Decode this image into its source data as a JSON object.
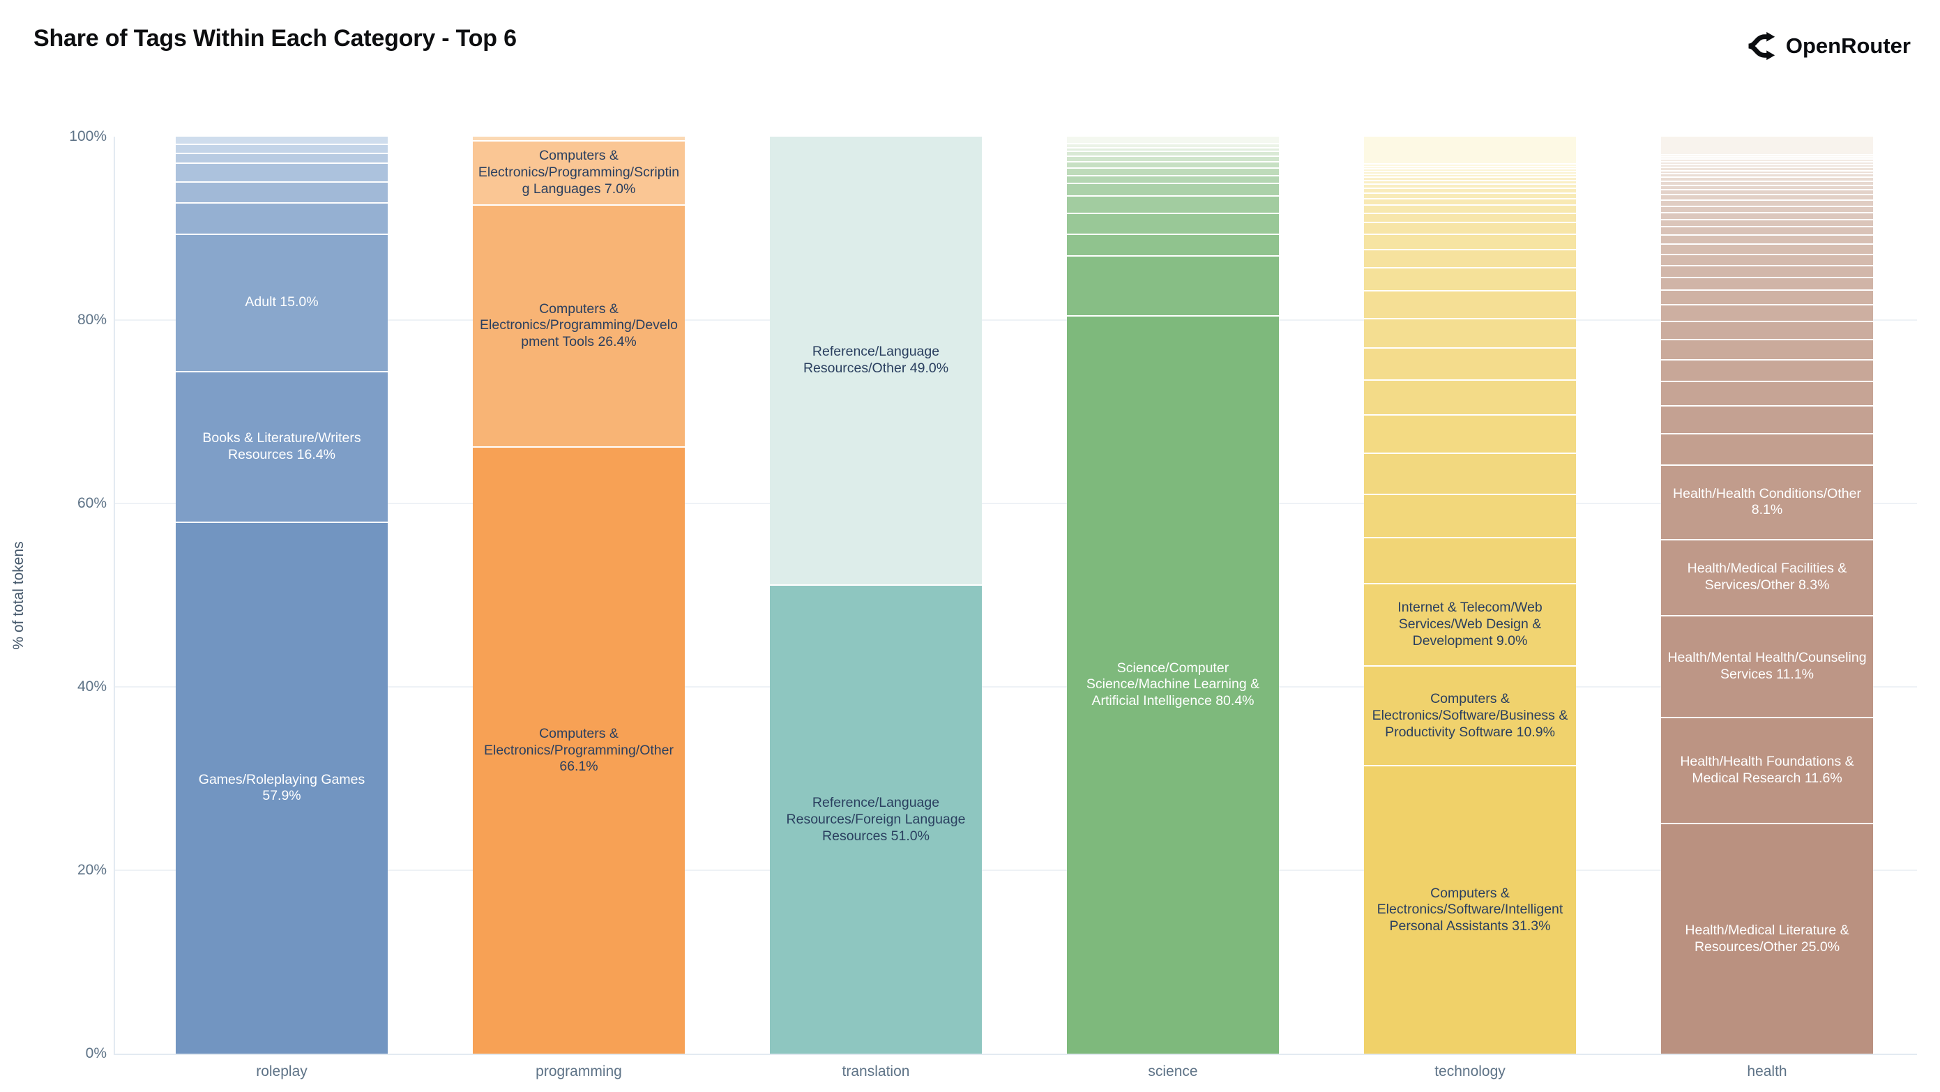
{
  "header": {
    "title": "Share of Tags Within Each Category - Top 6",
    "brand": {
      "name": "OpenRouter",
      "icon": "openrouter-fork-icon"
    }
  },
  "chart_data": {
    "type": "bar",
    "stacked": true,
    "orientation": "vertical",
    "title": "Share of Tags Within Each Category - Top 6",
    "xlabel": "",
    "ylabel": "% of total tokens",
    "ylim": [
      0,
      100
    ],
    "yticks": [
      0,
      20,
      40,
      60,
      80,
      100
    ],
    "ytick_labels": [
      "0%",
      "20%",
      "40%",
      "60%",
      "80%",
      "100%"
    ],
    "grid": true,
    "legend": false,
    "categories": [
      "roleplay",
      "programming",
      "translation",
      "science",
      "technology",
      "health"
    ],
    "bars": [
      {
        "category": "roleplay",
        "color_base": "#7295c1",
        "color_lightest": "#cfdded",
        "segments": [
          {
            "label": "Games/Roleplaying Games 57.9%",
            "value": 57.9
          },
          {
            "label": "Books & Literature/Writers Resources 16.4%",
            "value": 16.4
          },
          {
            "label": "Adult 15.0%",
            "value": 15.0
          },
          {
            "label": "",
            "value": 3.4
          },
          {
            "label": "",
            "value": 2.3
          },
          {
            "label": "",
            "value": 2.0
          },
          {
            "label": "",
            "value": 1.1
          },
          {
            "label": "",
            "value": 1.0
          },
          {
            "label": "",
            "value": 0.9
          }
        ]
      },
      {
        "category": "programming",
        "color_base": "#f7a155",
        "color_lightest": "#fbd9b4",
        "segments": [
          {
            "label": "Computers & Electronics/Programming/Other 66.1%",
            "value": 66.1
          },
          {
            "label": "Computers & Electronics/Programming/Development Tools 26.4%",
            "value": 26.4
          },
          {
            "label": "Computers & Electronics/Programming/Scripting Languages 7.0%",
            "value": 7.0
          },
          {
            "label": "",
            "value": 0.5
          }
        ]
      },
      {
        "category": "translation",
        "color_base": "#8ec6c0",
        "color_lightest": "#ddedea",
        "segments": [
          {
            "label": "Reference/Language Resources/Foreign Language Resources 51.0%",
            "value": 51.0
          },
          {
            "label": "Reference/Language Resources/Other 49.0%",
            "value": 49.0
          }
        ]
      },
      {
        "category": "science",
        "color_base": "#7eb97c",
        "color_lightest": "#f4f8f0",
        "segments": [
          {
            "label": "Science/Computer Science/Machine Learning & Artificial Intelligence 80.4%",
            "value": 80.4
          },
          {
            "label": "",
            "value": 6.5
          },
          {
            "label": "",
            "value": 2.4
          },
          {
            "label": "",
            "value": 2.3
          },
          {
            "label": "",
            "value": 1.9
          },
          {
            "label": "",
            "value": 1.3
          },
          {
            "label": "",
            "value": 0.9
          },
          {
            "label": "",
            "value": 0.8
          },
          {
            "label": "",
            "value": 0.7
          },
          {
            "label": "",
            "value": 0.6
          },
          {
            "label": "",
            "value": 0.5
          },
          {
            "label": "",
            "value": 0.45
          },
          {
            "label": "",
            "value": 0.4
          },
          {
            "label": "",
            "value": 0.85
          }
        ]
      },
      {
        "category": "technology",
        "color_base": "#f0d169",
        "color_lightest": "#fdf9e4",
        "segments": [
          {
            "label": "Computers & Electronics/Software/Intelligent Personal Assistants 31.3%",
            "value": 31.3
          },
          {
            "label": "Computers & Electronics/Software/Business & Productivity Software 10.9%",
            "value": 10.9
          },
          {
            "label": "Internet & Telecom/Web Services/Web Design & Development 9.0%",
            "value": 9.0
          },
          {
            "label": "",
            "value": 5.0
          },
          {
            "label": "",
            "value": 4.7
          },
          {
            "label": "",
            "value": 4.5
          },
          {
            "label": "",
            "value": 4.2
          },
          {
            "label": "",
            "value": 3.8
          },
          {
            "label": "",
            "value": 3.5
          },
          {
            "label": "",
            "value": 3.2
          },
          {
            "label": "",
            "value": 3.0
          },
          {
            "label": "",
            "value": 2.5
          },
          {
            "label": "",
            "value": 2.0
          },
          {
            "label": "",
            "value": 1.7
          },
          {
            "label": "",
            "value": 1.3
          },
          {
            "label": "",
            "value": 1.0
          },
          {
            "label": "",
            "value": 0.9
          },
          {
            "label": "",
            "value": 0.7
          },
          {
            "label": "",
            "value": 0.6
          },
          {
            "label": "",
            "value": 0.5
          },
          {
            "label": "",
            "value": 0.45
          },
          {
            "label": "",
            "value": 0.4
          },
          {
            "label": "",
            "value": 0.35
          },
          {
            "label": "",
            "value": 0.35
          },
          {
            "label": "",
            "value": 0.3
          },
          {
            "label": "",
            "value": 0.3
          },
          {
            "label": "",
            "value": 0.25
          },
          {
            "label": "",
            "value": 0.25
          },
          {
            "label": "",
            "value": 3.05
          }
        ]
      },
      {
        "category": "health",
        "color_base": "#ba9180",
        "color_lightest": "#f8f3ed",
        "segments": [
          {
            "label": "Health/Medical Literature & Resources/Other 25.0%",
            "value": 25.0
          },
          {
            "label": "Health/Health Foundations & Medical Research 11.6%",
            "value": 11.6
          },
          {
            "label": "Health/Mental Health/Counseling Services 11.1%",
            "value": 11.1
          },
          {
            "label": "Health/Medical Facilities & Services/Other 8.3%",
            "value": 8.3
          },
          {
            "label": "Health/Health Conditions/Other 8.1%",
            "value": 8.1
          },
          {
            "label": "",
            "value": 3.4
          },
          {
            "label": "",
            "value": 3.1
          },
          {
            "label": "",
            "value": 2.6
          },
          {
            "label": "",
            "value": 2.4
          },
          {
            "label": "",
            "value": 2.2
          },
          {
            "label": "",
            "value": 2.0
          },
          {
            "label": "",
            "value": 1.8
          },
          {
            "label": "",
            "value": 1.6
          },
          {
            "label": "",
            "value": 1.4
          },
          {
            "label": "",
            "value": 1.3
          },
          {
            "label": "",
            "value": 1.2
          },
          {
            "label": "",
            "value": 1.1
          },
          {
            "label": "",
            "value": 1.0
          },
          {
            "label": "",
            "value": 0.9
          },
          {
            "label": "",
            "value": 0.8
          },
          {
            "label": "",
            "value": 0.75
          },
          {
            "label": "",
            "value": 0.7
          },
          {
            "label": "",
            "value": 0.65
          },
          {
            "label": "",
            "value": 0.6
          },
          {
            "label": "",
            "value": 0.55
          },
          {
            "label": "",
            "value": 0.5
          },
          {
            "label": "",
            "value": 0.45
          },
          {
            "label": "",
            "value": 0.4
          },
          {
            "label": "",
            "value": 0.4
          },
          {
            "label": "",
            "value": 0.35
          },
          {
            "label": "",
            "value": 0.35
          },
          {
            "label": "",
            "value": 0.3
          },
          {
            "label": "",
            "value": 0.3
          },
          {
            "label": "",
            "value": 0.3
          },
          {
            "label": "",
            "value": 0.25
          },
          {
            "label": "",
            "value": 0.25
          },
          {
            "label": "",
            "value": 2.0
          }
        ]
      }
    ]
  }
}
